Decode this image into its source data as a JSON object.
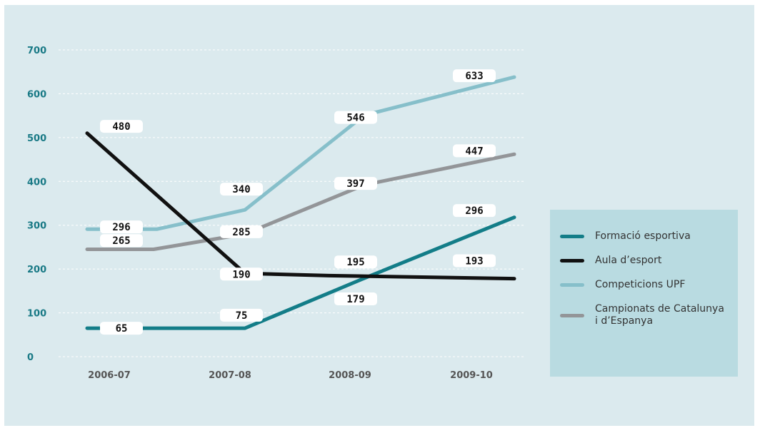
{
  "chart_data": {
    "type": "line",
    "categories": [
      "2006-07",
      "2007-08",
      "2008-09",
      "2009-10"
    ],
    "ylim": [
      0,
      700
    ],
    "yticks": [
      0,
      100,
      200,
      300,
      400,
      500,
      600,
      700
    ],
    "grid": "horizontal-dashed",
    "legend_position": "right",
    "series": [
      {
        "name": "Formació esportiva",
        "color": "#137d88",
        "values": [
          65,
          75,
          179,
          296
        ],
        "labels": [
          "65",
          "75",
          "179",
          "296"
        ]
      },
      {
        "name": "Aula d’esport",
        "color": "#111111",
        "values": [
          480,
          190,
          195,
          193
        ],
        "labels": [
          "480",
          "190",
          "195",
          "193"
        ]
      },
      {
        "name": "Competicions UPF",
        "color": "#86bfca",
        "values": [
          296,
          340,
          546,
          633
        ],
        "labels": [
          "296",
          "340",
          "546",
          "633"
        ]
      },
      {
        "name": "Campionats de Catalunya i d’Espanya",
        "color": "#939598",
        "values": [
          265,
          285,
          397,
          447
        ],
        "labels": [
          "265",
          "285",
          "397",
          "447"
        ]
      }
    ]
  }
}
